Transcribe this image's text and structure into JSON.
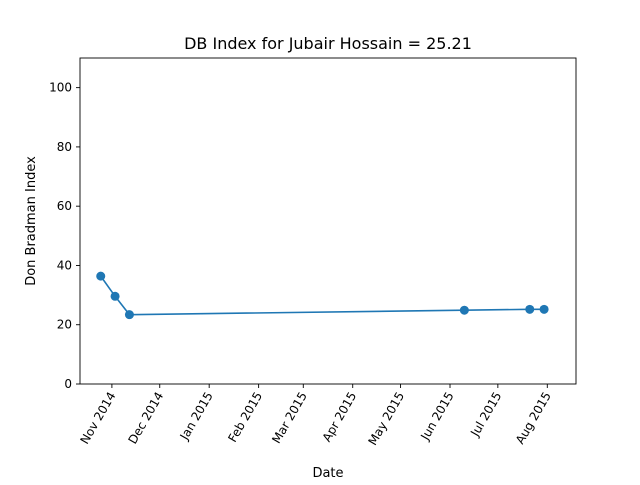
{
  "chart_data": {
    "type": "line",
    "title": "DB Index for Jubair Hossain = 25.21",
    "xlabel": "Date",
    "ylabel": "Don Bradman Index",
    "xlim": [
      "2014-10-12",
      "2015-08-19"
    ],
    "ylim": [
      0,
      110
    ],
    "x_ticks": [
      {
        "date": "2014-11-01",
        "label": "Nov 2014"
      },
      {
        "date": "2014-12-01",
        "label": "Dec 2014"
      },
      {
        "date": "2015-01-01",
        "label": "Jan 2015"
      },
      {
        "date": "2015-02-01",
        "label": "Feb 2015"
      },
      {
        "date": "2015-03-01",
        "label": "Mar 2015"
      },
      {
        "date": "2015-04-01",
        "label": "Apr 2015"
      },
      {
        "date": "2015-05-01",
        "label": "May 2015"
      },
      {
        "date": "2015-06-01",
        "label": "Jun 2015"
      },
      {
        "date": "2015-07-01",
        "label": "Jul 2015"
      },
      {
        "date": "2015-08-01",
        "label": "Aug 2015"
      }
    ],
    "y_ticks": [
      0,
      20,
      40,
      60,
      80,
      100
    ],
    "grid": false,
    "series": [
      {
        "color": "#1f77b4",
        "marker": "circle",
        "x": [
          "2014-10-25",
          "2014-11-03",
          "2014-11-12",
          "2015-06-10",
          "2015-07-21",
          "2015-07-30"
        ],
        "y": [
          36.4,
          29.6,
          23.4,
          24.9,
          25.2,
          25.2
        ]
      }
    ]
  }
}
